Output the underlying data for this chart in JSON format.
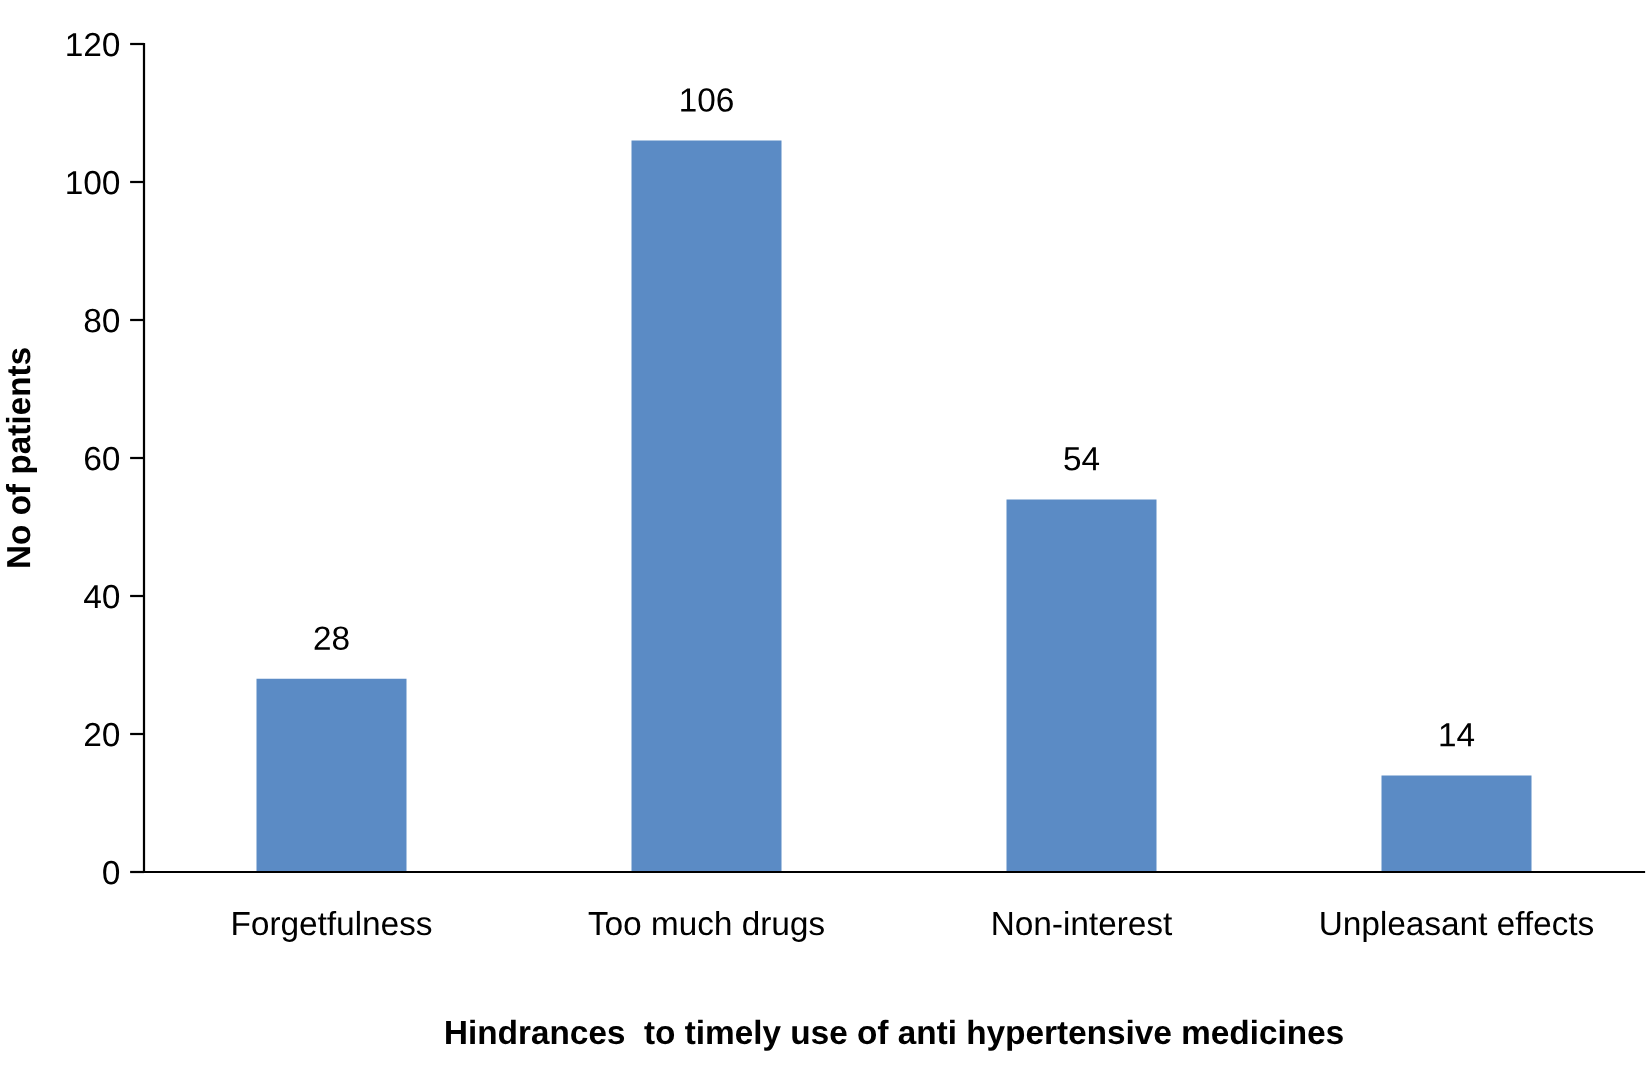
{
  "chart_data": {
    "type": "bar",
    "xlabel": "Hindrances  to timely use of anti hypertensive medicines",
    "ylabel": "No of patients",
    "categories": [
      "Forgetfulness",
      "Too much drugs",
      "Non-interest",
      "Unpleasant effects"
    ],
    "values": [
      28,
      106,
      54,
      14
    ],
    "color": "#5b8bc5",
    "ylim": [
      0,
      120
    ],
    "yticks": [
      0,
      20,
      40,
      60,
      80,
      100,
      120
    ],
    "grid": false,
    "data_labels": true
  }
}
